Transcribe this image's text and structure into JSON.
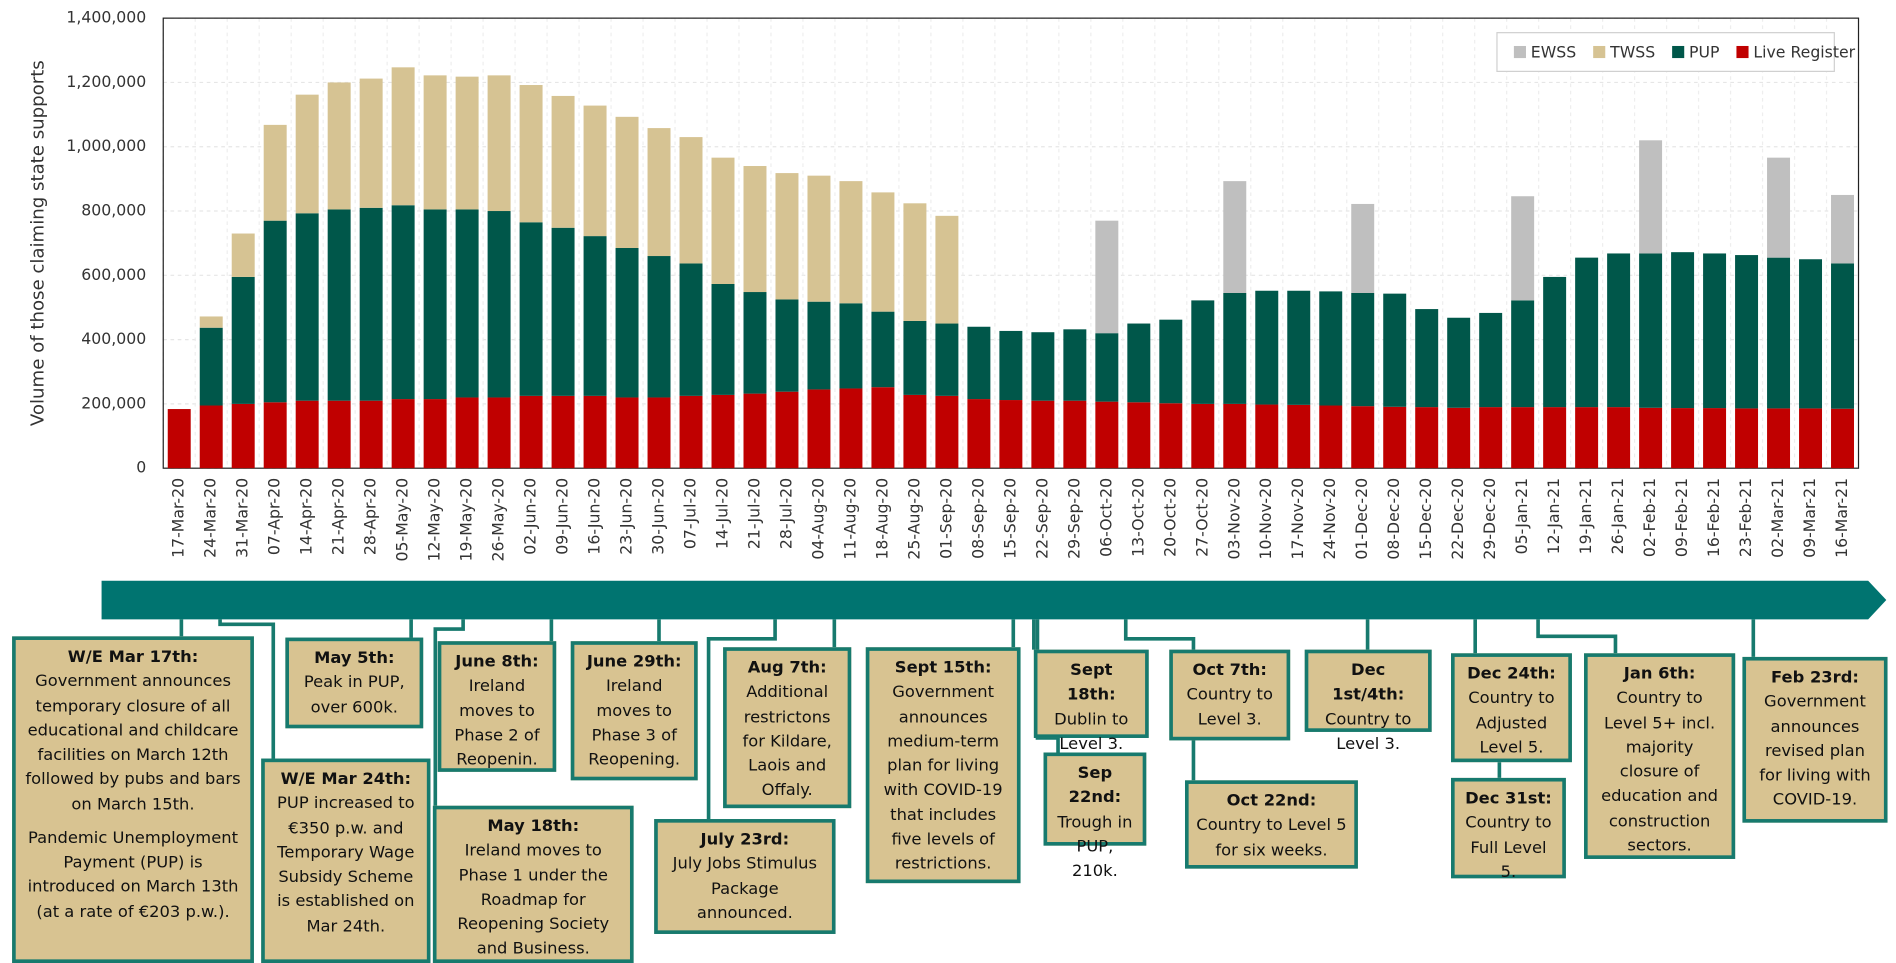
{
  "chart_data": {
    "type": "bar",
    "stacked": true,
    "y_label": "Volume of those claiming state supports",
    "categories": [
      "17-Mar-20",
      "24-Mar-20",
      "31-Mar-20",
      "07-Apr-20",
      "14-Apr-20",
      "21-Apr-20",
      "28-Apr-20",
      "05-May-20",
      "12-May-20",
      "19-May-20",
      "26-May-20",
      "02-Jun-20",
      "09-Jun-20",
      "16-Jun-20",
      "23-Jun-20",
      "30-Jun-20",
      "07-Jul-20",
      "14-Jul-20",
      "21-Jul-20",
      "28-Jul-20",
      "04-Aug-20",
      "11-Aug-20",
      "18-Aug-20",
      "25-Aug-20",
      "01-Sep-20",
      "08-Sep-20",
      "15-Sep-20",
      "22-Sep-20",
      "29-Sep-20",
      "06-Oct-20",
      "13-Oct-20",
      "20-Oct-20",
      "27-Oct-20",
      "03-Nov-20",
      "10-Nov-20",
      "17-Nov-20",
      "24-Nov-20",
      "01-Dec-20",
      "08-Dec-20",
      "15-Dec-20",
      "22-Dec-20",
      "29-Dec-20",
      "05-Jan-21",
      "12-Jan-21",
      "19-Jan-21",
      "26-Jan-21",
      "02-Feb-21",
      "09-Feb-21",
      "16-Feb-21",
      "23-Feb-21",
      "02-Mar-21",
      "09-Mar-21",
      "16-Mar-21"
    ],
    "series": [
      {
        "name": "Live Register",
        "color": "#c00000",
        "values": [
          184000,
          195000,
          200000,
          205000,
          210000,
          210000,
          210000,
          215000,
          215000,
          220000,
          220000,
          225000,
          225000,
          225000,
          220000,
          220000,
          225000,
          228000,
          232000,
          238000,
          245000,
          248000,
          252000,
          228000,
          225000,
          215000,
          212000,
          210000,
          210000,
          207000,
          205000,
          202000,
          200000,
          200000,
          198000,
          197000,
          195000,
          193000,
          191000,
          190000,
          188000,
          190000,
          190000,
          190000,
          190000,
          190000,
          188000,
          187000,
          187000,
          186000,
          186000,
          186000,
          185000
        ]
      },
      {
        "name": "PUP",
        "color": "#00574a",
        "values": [
          null,
          242000,
          395000,
          565000,
          583000,
          595000,
          600000,
          603000,
          590000,
          585000,
          580000,
          540000,
          523000,
          497000,
          465000,
          440000,
          412000,
          345000,
          316000,
          287000,
          273000,
          265000,
          235000,
          230000,
          225000,
          225000,
          215000,
          213000,
          222000,
          213000,
          245000,
          260000,
          322000,
          345000,
          354000,
          355000,
          355000,
          352000,
          352000,
          305000,
          280000,
          293000,
          332000,
          405000,
          465000,
          478000,
          480000,
          485000,
          481000,
          477000,
          469000,
          464000,
          452000
        ]
      },
      {
        "name": "TWSS",
        "color": "#d6c393",
        "values": [
          null,
          35000,
          135000,
          298000,
          369000,
          395000,
          402000,
          429000,
          417000,
          413000,
          422000,
          427000,
          410000,
          406000,
          408000,
          398000,
          393000,
          393000,
          392000,
          393000,
          392000,
          380000,
          371000,
          366000,
          335000,
          null,
          null,
          null,
          null,
          null,
          null,
          null,
          null,
          null,
          null,
          null,
          null,
          null,
          null,
          null,
          null,
          null,
          null,
          null,
          null,
          null,
          null,
          null,
          null,
          null,
          null,
          null,
          null
        ]
      },
      {
        "name": "EWSS",
        "color": "#bfbfbf",
        "values": [
          null,
          null,
          null,
          null,
          null,
          null,
          null,
          null,
          null,
          null,
          null,
          null,
          null,
          null,
          null,
          null,
          null,
          null,
          null,
          null,
          null,
          null,
          null,
          null,
          null,
          null,
          null,
          null,
          null,
          350000,
          null,
          null,
          null,
          348000,
          null,
          null,
          null,
          277000,
          null,
          null,
          null,
          null,
          324000,
          null,
          null,
          null,
          352000,
          null,
          null,
          null,
          311000,
          null,
          213000
        ]
      }
    ],
    "ylim": [
      0,
      1400000
    ],
    "yticks": [
      0,
      {
        "value": 200000,
        "label": "200,000"
      },
      {
        "value": 400000,
        "label": "400,000"
      },
      {
        "value": 600000,
        "label": "600,000"
      },
      {
        "value": 800000,
        "label": "800,000"
      },
      {
        "value": 1000000,
        "label": "1,000,000"
      },
      {
        "value": 1200000,
        "label": "1,200,000"
      },
      {
        "value": 1400000,
        "label": "1,400,000"
      }
    ],
    "grid": true,
    "legend": "top-right"
  },
  "annotations": [
    {
      "title": "W/E Mar 17th:",
      "paragraphs": [
        "Government announces temporary closure of all educational and childcare facilities on March 12th followed by pubs and bars on March 15th.",
        "Pandemic Unemployment Payment (PUP) is introduced on March 13th (at a rate of €203 p.w.)."
      ]
    },
    {
      "title": "W/E Mar 24th:",
      "paragraphs": [
        "PUP increased to €350 p.w. and Temporary Wage Subsidy Scheme is established on Mar 24th."
      ]
    },
    {
      "title": "May 5th:",
      "paragraphs": [
        "Peak in PUP, over 600k."
      ]
    },
    {
      "title": "May 18th:",
      "paragraphs": [
        "Ireland moves to Phase 1 under the Roadmap for Reopening Society and Business."
      ]
    },
    {
      "title": "June 8th:",
      "paragraphs": [
        "Ireland moves to Phase 2 of Reopenin."
      ]
    },
    {
      "title": "June 29th:",
      "paragraphs": [
        "Ireland moves to Phase 3 of Reopening."
      ]
    },
    {
      "title": "Aug 7th:",
      "paragraphs": [
        "Additional restrictons for Kildare, Laois and Offaly."
      ]
    },
    {
      "title": "July 23rd:",
      "paragraphs": [
        "July Jobs Stimulus Package announced."
      ]
    },
    {
      "title": "Sept 15th:",
      "paragraphs": [
        "Government announces medium-term plan for living with COVID-19 that includes five levels of restrictions."
      ]
    },
    {
      "title": "Sept 18th:",
      "paragraphs": [
        "Dublin to Level 3."
      ]
    },
    {
      "title": "Sep 22nd:",
      "paragraphs": [
        "Trough in PUP, 210k."
      ]
    },
    {
      "title": "Oct 7th:",
      "paragraphs": [
        "Country to Level 3."
      ]
    },
    {
      "title": "Oct 22nd:",
      "paragraphs": [
        "Country to Level 5 for six weeks."
      ]
    },
    {
      "title": "Dec 1st/4th:",
      "paragraphs": [
        "Country to Level 3."
      ]
    },
    {
      "title": "Dec 24th:",
      "paragraphs": [
        "Country to Adjusted Level 5."
      ]
    },
    {
      "title": "Dec 31st:",
      "paragraphs": [
        "Country to Full Level 5."
      ]
    },
    {
      "title": "Jan 6th:",
      "paragraphs": [
        "Country to Level 5+ incl. majority closure of education and construction sectors."
      ]
    },
    {
      "title": "Feb 23rd:",
      "paragraphs": [
        "Government announces revised plan for living with COVID-19."
      ]
    }
  ]
}
